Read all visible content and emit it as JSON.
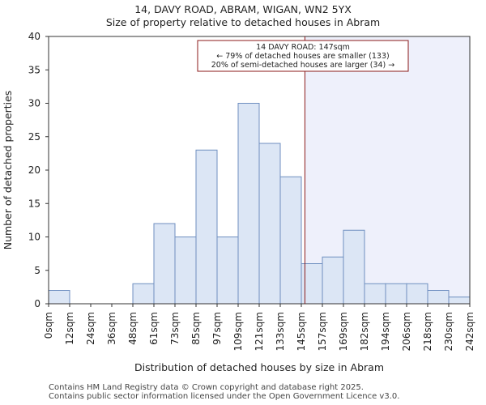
{
  "titles": {
    "line1": "14, DAVY ROAD, ABRAM, WIGAN, WN2 5YX",
    "line2": "Size of property relative to detached houses in Abram"
  },
  "chart_data": {
    "type": "bar",
    "xlabel": "Distribution of detached houses by size in Abram",
    "ylabel": "Number of detached properties",
    "ylim": [
      0,
      40
    ],
    "yticks": [
      0,
      5,
      10,
      15,
      20,
      25,
      30,
      35,
      40
    ],
    "bin_labels": [
      "0sqm",
      "12sqm",
      "24sqm",
      "36sqm",
      "48sqm",
      "61sqm",
      "73sqm",
      "85sqm",
      "97sqm",
      "109sqm",
      "121sqm",
      "133sqm",
      "145sqm",
      "157sqm",
      "169sqm",
      "182sqm",
      "194sqm",
      "206sqm",
      "218sqm",
      "230sqm",
      "242sqm"
    ],
    "values": [
      2,
      0,
      0,
      0,
      3,
      12,
      10,
      23,
      10,
      30,
      24,
      19,
      6,
      7,
      11,
      3,
      3,
      3,
      2,
      1
    ],
    "marker": {
      "value_sqm": 147,
      "position_bins": 12.17,
      "line1": "14 DAVY ROAD: 147sqm",
      "line2": "← 79% of detached houses are smaller (133)",
      "line3": "20% of semi-detached houses are larger (34) →"
    },
    "colors": {
      "bar_fill": "#dce6f5",
      "bar_edge": "#6f8fc0",
      "marker": "#8b1a1a",
      "highlight": "#eef0fb"
    }
  },
  "footer": {
    "line1": "Contains HM Land Registry data © Crown copyright and database right 2025.",
    "line2": "Contains public sector information licensed under the Open Government Licence v3.0."
  }
}
